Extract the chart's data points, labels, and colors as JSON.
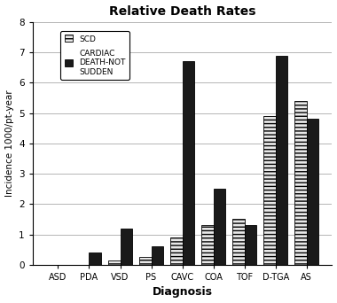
{
  "title": "Relative Death Rates",
  "xlabel": "Diagnosis",
  "ylabel": "Incidence 1000/pt-year",
  "categories": [
    "ASD",
    "PDA",
    "VSD",
    "PS",
    "CAVC",
    "COA",
    "TOF",
    "D-TGA",
    "AS"
  ],
  "scd": [
    0.0,
    0.0,
    0.15,
    0.25,
    0.9,
    1.3,
    1.5,
    4.9,
    5.4
  ],
  "cardiac_not_sudden": [
    0.0,
    0.4,
    1.2,
    0.6,
    6.7,
    2.5,
    1.3,
    6.9,
    4.8
  ],
  "ylim": [
    0,
    8
  ],
  "yticks": [
    0,
    1,
    2,
    3,
    4,
    5,
    6,
    7,
    8
  ],
  "legend_scd": "SCD",
  "legend_cardiac": "CARDIAC\nDEATH-NOT\nSUDDEN",
  "scd_hatch": "----",
  "scd_facecolor": "#e8e8e8",
  "cardiac_facecolor": "#1a1a1a",
  "bar_width": 0.38
}
